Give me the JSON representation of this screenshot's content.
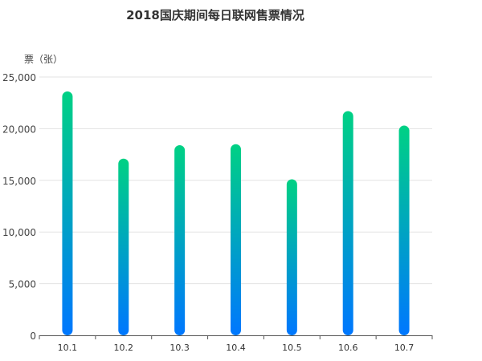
{
  "chart_data": {
    "type": "bar",
    "title": "2018国庆期间每日联网售票情况",
    "xlabel": "",
    "ylabel": "票（张）",
    "categories": [
      "10.1",
      "10.2",
      "10.3",
      "10.4",
      "10.5",
      "10.6",
      "10.7"
    ],
    "values": [
      23600,
      17100,
      18400,
      18500,
      15100,
      21700,
      20300
    ],
    "ylim": [
      0,
      25000
    ],
    "yticks": [
      0,
      5000,
      10000,
      15000,
      20000,
      25000
    ],
    "ytick_labels": [
      "0",
      "5,000",
      "10,000",
      "15,000",
      "20,000",
      "25,000"
    ],
    "grid": true,
    "legend": "none",
    "colors": {
      "bar_top": "#00d184",
      "bar_bottom": "#0077ff",
      "grid": "#e3e3e3",
      "axis": "#555555"
    }
  }
}
